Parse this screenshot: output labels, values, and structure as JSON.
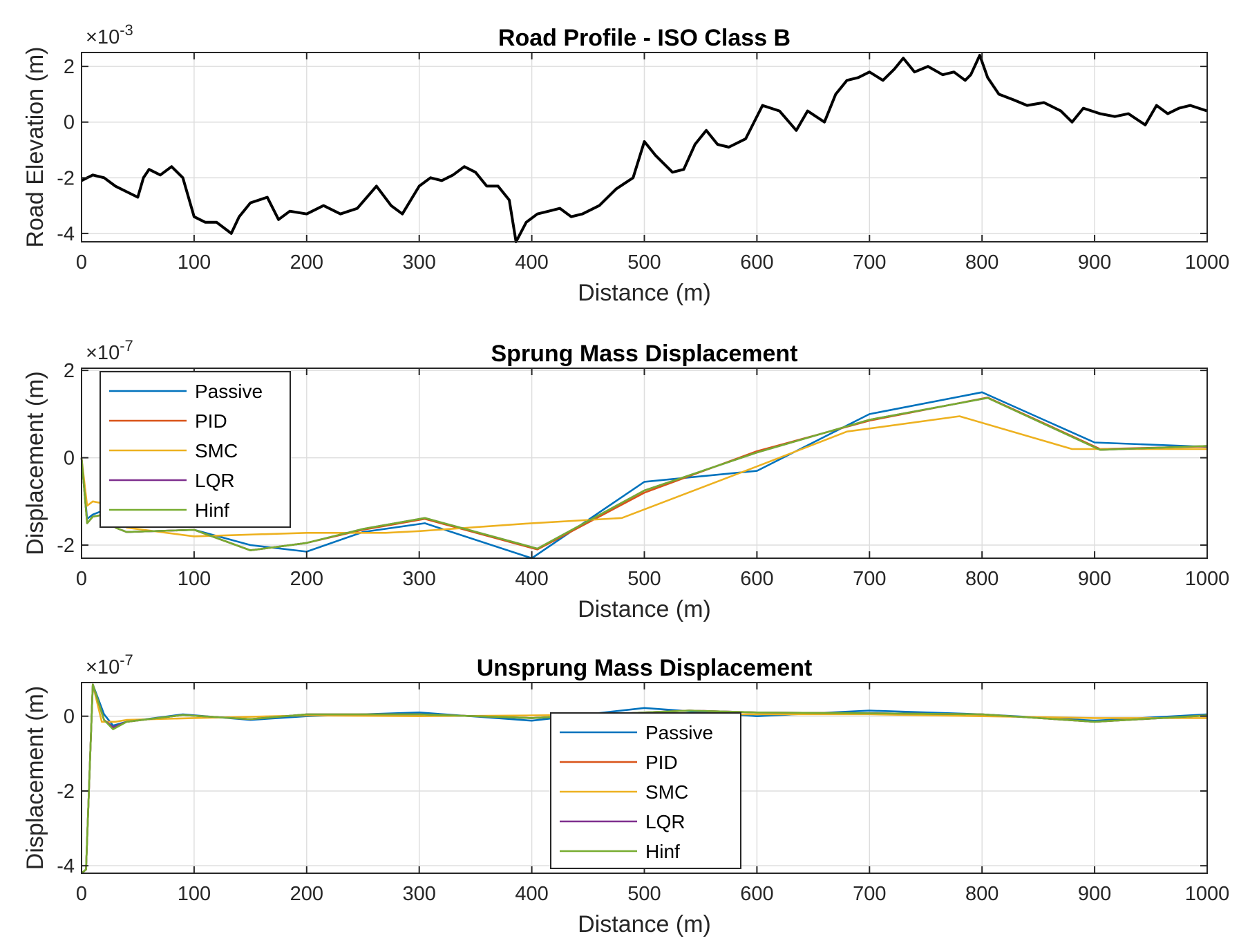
{
  "chart_data": [
    {
      "type": "line",
      "title": "Road Profile - ISO Class B",
      "xlabel": "Distance (m)",
      "ylabel": "Road Elevation (m)",
      "exponent": "-3",
      "xlim": [
        0,
        1000
      ],
      "ylim": [
        -4.3,
        2.5
      ],
      "xticks": [
        0,
        100,
        200,
        300,
        400,
        500,
        600,
        700,
        800,
        900,
        1000
      ],
      "yticks": [
        -4,
        -2,
        0,
        2
      ],
      "grid": true,
      "legend": null,
      "series": [
        {
          "color": "#000000",
          "x": [
            0,
            10,
            20,
            30,
            40,
            50,
            55,
            60,
            70,
            80,
            90,
            100,
            110,
            120,
            133,
            140,
            150,
            165,
            175,
            185,
            200,
            215,
            230,
            245,
            262,
            275,
            285,
            300,
            310,
            320,
            330,
            340,
            350,
            360,
            370,
            380,
            386,
            395,
            405,
            415,
            425,
            435,
            445,
            460,
            475,
            490,
            500,
            510,
            525,
            535,
            545,
            555,
            565,
            575,
            590,
            605,
            620,
            635,
            645,
            660,
            670,
            680,
            690,
            700,
            712,
            722,
            730,
            740,
            752,
            765,
            775,
            785,
            790,
            798,
            805,
            815,
            828,
            840,
            855,
            870,
            880,
            890,
            905,
            918,
            930,
            945,
            955,
            965,
            975,
            985,
            1000
          ],
          "y": [
            -2.1,
            -1.9,
            -2.0,
            -2.3,
            -2.5,
            -2.7,
            -2.0,
            -1.7,
            -1.9,
            -1.6,
            -2.0,
            -3.4,
            -3.6,
            -3.6,
            -4.0,
            -3.4,
            -2.9,
            -2.7,
            -3.5,
            -3.2,
            -3.3,
            -3.0,
            -3.3,
            -3.1,
            -2.3,
            -3.0,
            -3.3,
            -2.3,
            -2.0,
            -2.1,
            -1.9,
            -1.6,
            -1.8,
            -2.3,
            -2.3,
            -2.8,
            -4.3,
            -3.6,
            -3.3,
            -3.2,
            -3.1,
            -3.4,
            -3.3,
            -3.0,
            -2.4,
            -2.0,
            -0.7,
            -1.2,
            -1.8,
            -1.7,
            -0.8,
            -0.3,
            -0.8,
            -0.9,
            -0.6,
            0.6,
            0.4,
            -0.3,
            0.4,
            0.0,
            1.0,
            1.5,
            1.6,
            1.8,
            1.5,
            1.9,
            2.3,
            1.8,
            2.0,
            1.7,
            1.8,
            1.5,
            1.7,
            2.4,
            1.6,
            1.0,
            0.8,
            0.6,
            0.7,
            0.4,
            0.0,
            0.5,
            0.3,
            0.2,
            0.3,
            -0.1,
            0.6,
            0.3,
            0.5,
            0.6,
            0.4
          ]
        }
      ]
    },
    {
      "type": "line",
      "title": "Sprung Mass Displacement",
      "xlabel": "Distance (m)",
      "ylabel": "Displacement (m)",
      "exponent": "-7",
      "xlim": [
        0,
        1000
      ],
      "ylim": [
        -2.3,
        2.05
      ],
      "xticks": [
        0,
        100,
        200,
        300,
        400,
        500,
        600,
        700,
        800,
        900,
        1000
      ],
      "yticks": [
        -2,
        0,
        2
      ],
      "grid": true,
      "legend": "top-left",
      "series": [
        {
          "name": "Passive",
          "color": "#0072BD",
          "x": [
            0,
            5,
            10,
            20,
            30,
            40,
            100,
            150,
            200,
            250,
            305,
            400,
            500,
            600,
            700,
            800,
            900,
            1000
          ],
          "y": [
            0,
            -1.4,
            -1.3,
            -1.2,
            -1.6,
            -1.7,
            -1.65,
            -2.0,
            -2.15,
            -1.7,
            -1.5,
            -2.3,
            -0.55,
            -0.3,
            1.0,
            1.5,
            0.35,
            0.25
          ]
        },
        {
          "name": "PID",
          "color": "#D95319",
          "x": [
            0,
            5,
            10,
            20,
            30,
            40,
            100,
            150,
            200,
            250,
            305,
            405,
            500,
            600,
            700,
            805,
            905,
            1000
          ],
          "y": [
            0,
            -1.5,
            -1.35,
            -1.3,
            -1.6,
            -1.7,
            -1.65,
            -2.12,
            -1.95,
            -1.65,
            -1.4,
            -2.1,
            -0.8,
            0.15,
            0.85,
            1.38,
            0.2,
            0.26
          ]
        },
        {
          "name": "SMC",
          "color": "#EDB120",
          "x": [
            0,
            5,
            10,
            20,
            30,
            40,
            100,
            200,
            270,
            300,
            400,
            480,
            600,
            680,
            780,
            880,
            1000
          ],
          "y": [
            0,
            -1.1,
            -1.0,
            -1.05,
            -1.3,
            -1.6,
            -1.8,
            -1.72,
            -1.72,
            -1.68,
            -1.5,
            -1.38,
            -0.2,
            0.6,
            0.95,
            0.2,
            0.2
          ]
        },
        {
          "name": "LQR",
          "color": "#7E2F8E",
          "x": [
            0,
            5,
            10,
            20,
            30,
            40,
            100,
            150,
            200,
            250,
            305,
            405,
            500,
            600,
            700,
            805,
            905,
            1000
          ],
          "y": [
            0,
            -1.5,
            -1.35,
            -1.3,
            -1.6,
            -1.7,
            -1.65,
            -2.12,
            -1.95,
            -1.63,
            -1.38,
            -2.08,
            -0.75,
            0.12,
            0.87,
            1.37,
            0.18,
            0.27
          ]
        },
        {
          "name": "Hinf",
          "color": "#77AC30",
          "x": [
            0,
            5,
            10,
            20,
            30,
            40,
            100,
            150,
            200,
            250,
            305,
            405,
            500,
            600,
            700,
            805,
            905,
            1000
          ],
          "y": [
            0,
            -1.5,
            -1.35,
            -1.3,
            -1.6,
            -1.7,
            -1.65,
            -2.12,
            -1.95,
            -1.63,
            -1.38,
            -2.08,
            -0.75,
            0.12,
            0.87,
            1.37,
            0.18,
            0.27
          ]
        }
      ]
    },
    {
      "type": "line",
      "title": "Unsprung Mass Displacement",
      "xlabel": "Distance (m)",
      "ylabel": "Displacement (m)",
      "exponent": "-7",
      "xlim": [
        0,
        1000
      ],
      "ylim": [
        -4.2,
        0.9
      ],
      "xticks": [
        0,
        100,
        200,
        300,
        400,
        500,
        600,
        700,
        800,
        900,
        1000
      ],
      "yticks": [
        -4,
        -2,
        0
      ],
      "grid": true,
      "legend": "bottom-center",
      "series": [
        {
          "name": "Passive",
          "color": "#0072BD",
          "x": [
            0,
            4,
            10,
            20,
            28,
            40,
            90,
            150,
            200,
            300,
            400,
            500,
            600,
            700,
            800,
            900,
            1000
          ],
          "y": [
            -4.2,
            -4.1,
            0.85,
            0.05,
            -0.25,
            -0.15,
            0.05,
            -0.1,
            0.0,
            0.1,
            -0.12,
            0.22,
            0.0,
            0.15,
            0.05,
            -0.12,
            0.05
          ]
        },
        {
          "name": "PID",
          "color": "#D95319",
          "x": [
            0,
            4,
            10,
            20,
            28,
            40,
            90,
            150,
            200,
            300,
            400,
            500,
            540,
            600,
            700,
            800,
            900,
            1000
          ],
          "y": [
            -4.2,
            -4.1,
            0.85,
            -0.1,
            -0.3,
            -0.15,
            0.03,
            -0.08,
            0.05,
            0.05,
            -0.05,
            0.1,
            0.15,
            0.1,
            0.08,
            0.05,
            -0.15,
            0.02
          ]
        },
        {
          "name": "SMC",
          "color": "#EDB120",
          "x": [
            0,
            4,
            10,
            18,
            30,
            40,
            100,
            200,
            300,
            400,
            500,
            600,
            700,
            800,
            900,
            1000
          ],
          "y": [
            -4.2,
            -4.1,
            0.85,
            -0.15,
            -0.15,
            -0.1,
            -0.05,
            0.02,
            0.0,
            0.02,
            0.05,
            0.05,
            0.05,
            0.0,
            -0.05,
            -0.05
          ]
        },
        {
          "name": "LQR",
          "color": "#7E2F8E",
          "x": [
            0,
            4,
            10,
            20,
            28,
            40,
            90,
            150,
            200,
            300,
            400,
            500,
            540,
            600,
            700,
            800,
            900,
            1000
          ],
          "y": [
            -4.2,
            -4.1,
            0.85,
            -0.1,
            -0.3,
            -0.15,
            0.03,
            -0.08,
            0.05,
            0.05,
            -0.05,
            0.1,
            0.15,
            0.1,
            0.08,
            0.05,
            -0.15,
            0.02
          ]
        },
        {
          "name": "Hinf",
          "color": "#77AC30",
          "x": [
            0,
            4,
            10,
            20,
            28,
            40,
            90,
            150,
            200,
            300,
            400,
            500,
            540,
            600,
            700,
            800,
            900,
            1000
          ],
          "y": [
            -4.2,
            -4.1,
            0.85,
            -0.1,
            -0.35,
            -0.15,
            0.03,
            -0.08,
            0.05,
            0.05,
            -0.05,
            0.1,
            0.15,
            0.1,
            0.08,
            0.05,
            -0.15,
            0.02
          ]
        }
      ]
    }
  ]
}
